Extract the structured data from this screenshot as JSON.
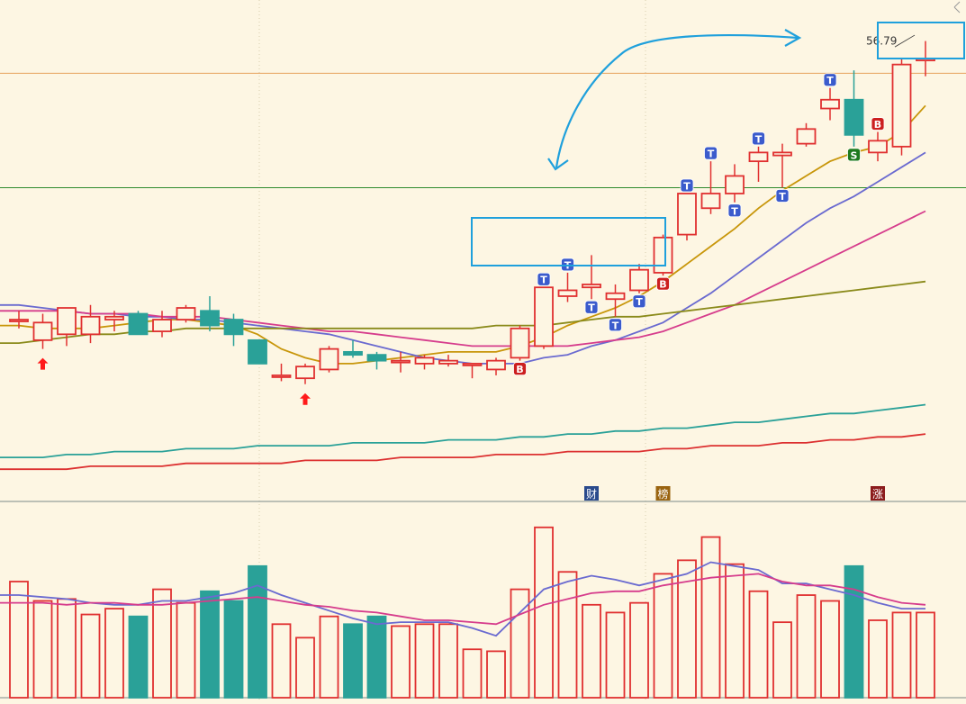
{
  "chart_data": [
    {
      "type": "candlestick",
      "panel": "price",
      "title": "",
      "ylim": [
        40.7,
        57.8
      ],
      "grid": false,
      "hlines": [
        {
          "value": 55.3,
          "color": "#e6a05a"
        },
        {
          "value": 51.4,
          "color": "#2e8b2e"
        }
      ],
      "candles": [
        {
          "o": 46.9,
          "h": 47.2,
          "l": 46.6,
          "c": 46.9
        },
        {
          "o": 46.2,
          "h": 47.1,
          "l": 45.9,
          "c": 46.8
        },
        {
          "o": 46.4,
          "h": 47.2,
          "l": 46.0,
          "c": 47.3
        },
        {
          "o": 46.4,
          "h": 47.4,
          "l": 46.1,
          "c": 47.0
        },
        {
          "o": 46.9,
          "h": 47.2,
          "l": 46.5,
          "c": 47.0
        },
        {
          "o": 47.1,
          "h": 47.2,
          "l": 46.5,
          "c": 46.4
        },
        {
          "o": 46.5,
          "h": 47.2,
          "l": 46.3,
          "c": 46.9
        },
        {
          "o": 46.9,
          "h": 47.4,
          "l": 46.8,
          "c": 47.3
        },
        {
          "o": 47.2,
          "h": 47.7,
          "l": 46.5,
          "c": 46.7
        },
        {
          "o": 46.9,
          "h": 47.1,
          "l": 46.0,
          "c": 46.4
        },
        {
          "o": 46.2,
          "h": 46.2,
          "l": 45.4,
          "c": 45.4
        },
        {
          "o": 45.0,
          "h": 45.4,
          "l": 44.8,
          "c": 45.0
        },
        {
          "o": 44.9,
          "h": 45.4,
          "l": 44.7,
          "c": 45.3
        },
        {
          "o": 45.2,
          "h": 46.0,
          "l": 45.1,
          "c": 45.9
        },
        {
          "o": 45.8,
          "h": 46.2,
          "l": 45.6,
          "c": 45.7
        },
        {
          "o": 45.7,
          "h": 45.8,
          "l": 45.2,
          "c": 45.5
        },
        {
          "o": 45.5,
          "h": 45.8,
          "l": 45.1,
          "c": 45.5
        },
        {
          "o": 45.4,
          "h": 45.7,
          "l": 45.2,
          "c": 45.6
        },
        {
          "o": 45.4,
          "h": 45.7,
          "l": 45.3,
          "c": 45.5
        },
        {
          "o": 45.4,
          "h": 45.4,
          "l": 44.9,
          "c": 45.4
        },
        {
          "o": 45.2,
          "h": 45.6,
          "l": 45.0,
          "c": 45.5
        },
        {
          "o": 45.6,
          "h": 46.7,
          "l": 45.5,
          "c": 46.6
        },
        {
          "o": 46.0,
          "h": 48.0,
          "l": 45.9,
          "c": 48.0
        },
        {
          "o": 47.7,
          "h": 48.5,
          "l": 47.5,
          "c": 47.9
        },
        {
          "o": 48.0,
          "h": 49.1,
          "l": 47.6,
          "c": 48.1
        },
        {
          "o": 47.6,
          "h": 48.1,
          "l": 47.0,
          "c": 47.8
        },
        {
          "o": 47.9,
          "h": 48.8,
          "l": 47.8,
          "c": 48.6
        },
        {
          "o": 48.5,
          "h": 49.8,
          "l": 48.4,
          "c": 49.7
        },
        {
          "o": 49.8,
          "h": 51.2,
          "l": 49.6,
          "c": 51.2
        },
        {
          "o": 50.7,
          "h": 52.3,
          "l": 50.5,
          "c": 51.2
        },
        {
          "o": 51.2,
          "h": 52.2,
          "l": 50.9,
          "c": 51.8
        },
        {
          "o": 52.3,
          "h": 52.8,
          "l": 51.6,
          "c": 52.6
        },
        {
          "o": 52.5,
          "h": 52.9,
          "l": 51.4,
          "c": 52.6
        },
        {
          "o": 52.9,
          "h": 53.6,
          "l": 52.8,
          "c": 53.4
        },
        {
          "o": 54.1,
          "h": 54.8,
          "l": 53.7,
          "c": 54.4
        },
        {
          "o": 54.4,
          "h": 55.4,
          "l": 52.8,
          "c": 53.2
        },
        {
          "o": 52.6,
          "h": 53.3,
          "l": 52.3,
          "c": 53.0
        },
        {
          "o": 52.8,
          "h": 55.8,
          "l": 52.5,
          "c": 55.6
        },
        {
          "o": 55.8,
          "h": 56.4,
          "l": 55.2,
          "c": 55.8
        }
      ],
      "moving_averages": [
        {
          "color": "#c8960a",
          "values": [
            46.7,
            46.6,
            46.6,
            46.6,
            46.7,
            46.8,
            46.9,
            46.9,
            46.8,
            46.7,
            46.4,
            45.9,
            45.6,
            45.4,
            45.4,
            45.5,
            45.6,
            45.7,
            45.8,
            45.8,
            45.8,
            46.0,
            46.3,
            46.7,
            47.0,
            47.3,
            47.7,
            48.2,
            48.8,
            49.4,
            50.0,
            50.7,
            51.3,
            51.8,
            52.3,
            52.6,
            52.8,
            53.3,
            54.2
          ]
        },
        {
          "color": "#6a6ad0",
          "values": [
            47.4,
            47.3,
            47.2,
            47.1,
            47.1,
            47.0,
            47.0,
            46.9,
            46.9,
            46.8,
            46.7,
            46.6,
            46.5,
            46.4,
            46.2,
            46.0,
            45.8,
            45.6,
            45.5,
            45.4,
            45.4,
            45.4,
            45.6,
            45.7,
            46.0,
            46.2,
            46.5,
            46.8,
            47.3,
            47.8,
            48.4,
            49.0,
            49.6,
            50.2,
            50.7,
            51.1,
            51.6,
            52.1,
            52.6
          ]
        },
        {
          "color": "#d63c8c",
          "values": [
            47.2,
            47.2,
            47.2,
            47.1,
            47.1,
            47.1,
            47.0,
            47.0,
            47.0,
            46.9,
            46.8,
            46.7,
            46.6,
            46.5,
            46.5,
            46.4,
            46.3,
            46.2,
            46.1,
            46.0,
            46.0,
            46.0,
            46.0,
            46.0,
            46.1,
            46.2,
            46.3,
            46.5,
            46.8,
            47.1,
            47.4,
            47.8,
            48.2,
            48.6,
            49.0,
            49.4,
            49.8,
            50.2,
            50.6
          ]
        },
        {
          "color": "#8a8a1a",
          "values": [
            46.1,
            46.2,
            46.3,
            46.4,
            46.4,
            46.5,
            46.5,
            46.6,
            46.6,
            46.6,
            46.6,
            46.6,
            46.6,
            46.6,
            46.6,
            46.6,
            46.6,
            46.6,
            46.6,
            46.6,
            46.7,
            46.7,
            46.7,
            46.8,
            46.9,
            47.0,
            47.0,
            47.1,
            47.2,
            47.3,
            47.4,
            47.5,
            47.6,
            47.7,
            47.8,
            47.9,
            48.0,
            48.1,
            48.2
          ]
        },
        {
          "color": "#2aa198",
          "values": [
            42.2,
            42.2,
            42.3,
            42.3,
            42.4,
            42.4,
            42.4,
            42.5,
            42.5,
            42.5,
            42.6,
            42.6,
            42.6,
            42.6,
            42.7,
            42.7,
            42.7,
            42.7,
            42.8,
            42.8,
            42.8,
            42.9,
            42.9,
            43.0,
            43.0,
            43.1,
            43.1,
            43.2,
            43.2,
            43.3,
            43.4,
            43.4,
            43.5,
            43.6,
            43.7,
            43.7,
            43.8,
            43.9,
            44.0
          ]
        },
        {
          "color": "#dc3030",
          "values": [
            41.8,
            41.8,
            41.8,
            41.9,
            41.9,
            41.9,
            41.9,
            42.0,
            42.0,
            42.0,
            42.0,
            42.0,
            42.1,
            42.1,
            42.1,
            42.1,
            42.2,
            42.2,
            42.2,
            42.2,
            42.3,
            42.3,
            42.3,
            42.4,
            42.4,
            42.4,
            42.4,
            42.5,
            42.5,
            42.6,
            42.6,
            42.6,
            42.7,
            42.7,
            42.8,
            42.8,
            42.9,
            42.9,
            43.0
          ]
        }
      ],
      "markers": [
        {
          "i": 1,
          "kind": "up-arrow",
          "side": "below"
        },
        {
          "i": 12,
          "kind": "up-arrow",
          "side": "below"
        },
        {
          "i": 21,
          "kind": "badge",
          "letter": "B",
          "side": "below",
          "color": "#cc1f1f"
        },
        {
          "i": 22,
          "kind": "badge",
          "letter": "T",
          "side": "above",
          "color": "#3b5bcc"
        },
        {
          "i": 23,
          "kind": "badge",
          "letter": "T",
          "side": "above",
          "color": "#3b5bcc"
        },
        {
          "i": 24,
          "kind": "badge",
          "letter": "T",
          "side": "below",
          "color": "#3b5bcc"
        },
        {
          "i": 25,
          "kind": "badge",
          "letter": "T",
          "side": "below",
          "color": "#3b5bcc"
        },
        {
          "i": 26,
          "kind": "badge",
          "letter": "T",
          "side": "below",
          "color": "#3b5bcc"
        },
        {
          "i": 27,
          "kind": "badge",
          "letter": "B",
          "side": "below",
          "color": "#cc1f1f"
        },
        {
          "i": 28,
          "kind": "badge",
          "letter": "T",
          "side": "above",
          "color": "#3b5bcc"
        },
        {
          "i": 29,
          "kind": "badge",
          "letter": "T",
          "side": "above",
          "color": "#3b5bcc"
        },
        {
          "i": 30,
          "kind": "badge",
          "letter": "T",
          "side": "below",
          "color": "#3b5bcc"
        },
        {
          "i": 31,
          "kind": "badge",
          "letter": "T",
          "side": "above",
          "color": "#3b5bcc"
        },
        {
          "i": 32,
          "kind": "badge",
          "letter": "T",
          "side": "below",
          "color": "#3b5bcc"
        },
        {
          "i": 34,
          "kind": "badge",
          "letter": "T",
          "side": "above",
          "color": "#3b5bcc"
        },
        {
          "i": 35,
          "kind": "badge",
          "letter": "S",
          "side": "below",
          "color": "#1e7a1e"
        },
        {
          "i": 36,
          "kind": "badge",
          "letter": "B",
          "side": "above",
          "color": "#cc1f1f"
        }
      ],
      "event_badges": [
        {
          "i": 24,
          "label": "财",
          "color": "#2a4a8c"
        },
        {
          "i": 27,
          "label": "榜",
          "color": "#9a6410"
        },
        {
          "i": 36,
          "label": "涨",
          "color": "#8c1c1c"
        }
      ],
      "price_label": "56.79",
      "annotations": {
        "box_color": "#1fa0dc",
        "arrow_color": "#1fa0dc"
      }
    },
    {
      "type": "bar",
      "panel": "volume",
      "ylim": [
        0,
        100
      ],
      "values": [
        60,
        50,
        51,
        43,
        46,
        42,
        56,
        49,
        55,
        50,
        68,
        38,
        31,
        42,
        38,
        42,
        37,
        38,
        38,
        25,
        24,
        56,
        88,
        65,
        48,
        44,
        49,
        64,
        71,
        83,
        69,
        55,
        39,
        53,
        50,
        68,
        40,
        44,
        44
      ],
      "ma_lines": [
        {
          "color": "#6a6ad0",
          "values": [
            53,
            52,
            51,
            49,
            48,
            48,
            50,
            50,
            52,
            54,
            58,
            53,
            49,
            45,
            41,
            38,
            39,
            39,
            39,
            36,
            32,
            44,
            56,
            60,
            63,
            61,
            58,
            61,
            64,
            70,
            68,
            66,
            59,
            59,
            56,
            53,
            49,
            46,
            46
          ]
        },
        {
          "color": "#d63c8c",
          "values": [
            49,
            49,
            48,
            49,
            49,
            48,
            48,
            49,
            50,
            51,
            52,
            50,
            48,
            47,
            45,
            44,
            42,
            40,
            40,
            39,
            38,
            43,
            48,
            51,
            54,
            55,
            55,
            58,
            60,
            62,
            63,
            64,
            60,
            58,
            58,
            56,
            52,
            49,
            48
          ]
        }
      ]
    }
  ]
}
